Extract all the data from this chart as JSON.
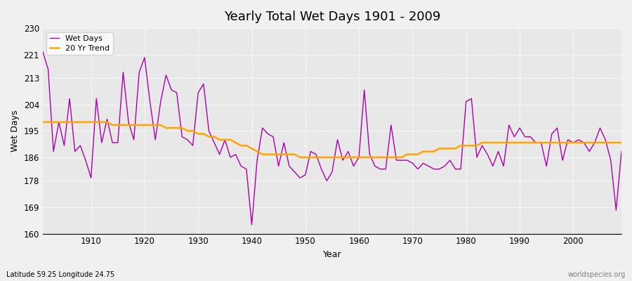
{
  "title": "Yearly Total Wet Days 1901 - 2009",
  "xlabel": "Year",
  "ylabel": "Wet Days",
  "subtitle": "Latitude 59.25 Longitude 24.75",
  "watermark": "worldspecies.org",
  "ylim": [
    160,
    230
  ],
  "yticks": [
    160,
    169,
    178,
    186,
    195,
    204,
    213,
    221,
    230
  ],
  "xticks": [
    1910,
    1920,
    1930,
    1940,
    1950,
    1960,
    1970,
    1980,
    1990,
    2000
  ],
  "line_color": "#AA00AA",
  "trend_color": "#FFA500",
  "fig_bg": "#F0F0F0",
  "plot_bg": "#E8E8E8",
  "years": [
    1901,
    1902,
    1903,
    1904,
    1905,
    1906,
    1907,
    1908,
    1909,
    1910,
    1911,
    1912,
    1913,
    1914,
    1915,
    1916,
    1917,
    1918,
    1919,
    1920,
    1921,
    1922,
    1923,
    1924,
    1925,
    1926,
    1927,
    1928,
    1929,
    1930,
    1931,
    1932,
    1933,
    1934,
    1935,
    1936,
    1937,
    1938,
    1939,
    1940,
    1941,
    1942,
    1943,
    1944,
    1945,
    1946,
    1947,
    1948,
    1949,
    1950,
    1951,
    1952,
    1953,
    1954,
    1955,
    1956,
    1957,
    1958,
    1959,
    1960,
    1961,
    1962,
    1963,
    1964,
    1965,
    1966,
    1967,
    1968,
    1969,
    1970,
    1971,
    1972,
    1973,
    1974,
    1975,
    1976,
    1977,
    1978,
    1979,
    1980,
    1981,
    1982,
    1983,
    1984,
    1985,
    1986,
    1987,
    1988,
    1989,
    1990,
    1991,
    1992,
    1993,
    1994,
    1995,
    1996,
    1997,
    1998,
    1999,
    2000,
    2001,
    2002,
    2003,
    2004,
    2005,
    2006,
    2007,
    2008,
    2009
  ],
  "wet_days": [
    222,
    216,
    188,
    198,
    190,
    206,
    188,
    190,
    185,
    179,
    206,
    191,
    199,
    191,
    191,
    215,
    198,
    192,
    215,
    220,
    205,
    192,
    205,
    214,
    209,
    208,
    193,
    192,
    190,
    208,
    211,
    195,
    191,
    187,
    192,
    186,
    187,
    183,
    182,
    163,
    185,
    196,
    194,
    193,
    183,
    191,
    183,
    181,
    179,
    180,
    188,
    187,
    182,
    178,
    181,
    192,
    185,
    188,
    183,
    186,
    209,
    187,
    183,
    182,
    182,
    197,
    185,
    185,
    185,
    184,
    182,
    184,
    183,
    182,
    182,
    183,
    185,
    182,
    182,
    205,
    206,
    186,
    190,
    187,
    183,
    188,
    183,
    197,
    193,
    196,
    193,
    193,
    191,
    191,
    183,
    194,
    196,
    185,
    192,
    191,
    192,
    191,
    188,
    191,
    196,
    192,
    185,
    168,
    188
  ],
  "trend": [
    198,
    198,
    198,
    198,
    198,
    198,
    198,
    198,
    198,
    198,
    198,
    198,
    198,
    197,
    197,
    197,
    197,
    197,
    197,
    197,
    197,
    197,
    197,
    196,
    196,
    196,
    196,
    195,
    195,
    194,
    194,
    193,
    193,
    192,
    192,
    192,
    191,
    190,
    190,
    189,
    188,
    187,
    187,
    187,
    187,
    187,
    187,
    187,
    186,
    186,
    186,
    186,
    186,
    186,
    186,
    186,
    186,
    186,
    186,
    186,
    186,
    186,
    186,
    186,
    186,
    186,
    186,
    186,
    187,
    187,
    187,
    188,
    188,
    188,
    189,
    189,
    189,
    189,
    190,
    190,
    190,
    190,
    191,
    191,
    191,
    191,
    191,
    191,
    191,
    191,
    191,
    191,
    191,
    191,
    191,
    191,
    191,
    191,
    191,
    191,
    191,
    191,
    191,
    191,
    191,
    191,
    191,
    191,
    191
  ]
}
